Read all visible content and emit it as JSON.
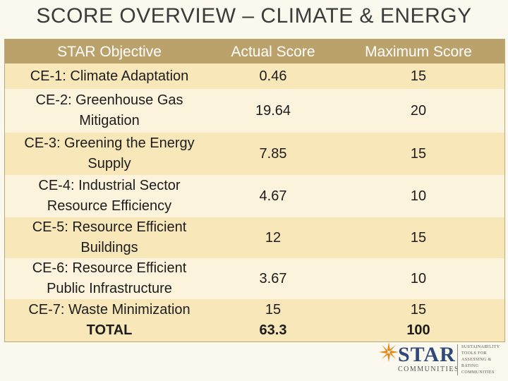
{
  "title": "SCORE OVERVIEW – CLIMATE & ENERGY",
  "table": {
    "headers": [
      "STAR Objective",
      "Actual Score",
      "Maximum Score"
    ],
    "rows": [
      {
        "objective": "CE-1: Climate Adaptation",
        "actual": "0.46",
        "max": "15"
      },
      {
        "objective_line1": "CE-2: Greenhouse Gas",
        "objective_line2": "Mitigation",
        "actual": "19.64",
        "max": "20"
      },
      {
        "objective_line1": "CE-3: Greening the Energy",
        "objective_line2": "Supply",
        "actual": "7.85",
        "max": "15"
      },
      {
        "objective_line1": "CE-4: Industrial Sector",
        "objective_line2": "Resource Efficiency",
        "actual": "4.67",
        "max": "10"
      },
      {
        "objective_line1": "CE-5: Resource Efficient",
        "objective_line2": "Buildings",
        "actual": "12",
        "max": "15"
      },
      {
        "objective_line1": "CE-6: Resource Efficient",
        "objective_line2": "Public Infrastructure",
        "actual": "3.67",
        "max": "10"
      },
      {
        "objective": "CE-7: Waste Minimization",
        "actual": "15",
        "max": "15"
      }
    ],
    "total": {
      "label": "TOTAL",
      "actual": "63.3",
      "max": "100"
    }
  },
  "logo": {
    "word": "STAR",
    "sub": "COMMUNITIES",
    "tagline_1": "SUSTAINABILITY",
    "tagline_2": "TOOLS FOR",
    "tagline_3": "ASSESSING &",
    "tagline_4": "RATING COMMUNITIES"
  },
  "colors": {
    "header": "#bba16a",
    "row_odd": "#f8e7b8",
    "row_even": "#fcf3dc",
    "logo_orange": "#e08a1e",
    "logo_blue": "#2f4a7a"
  }
}
